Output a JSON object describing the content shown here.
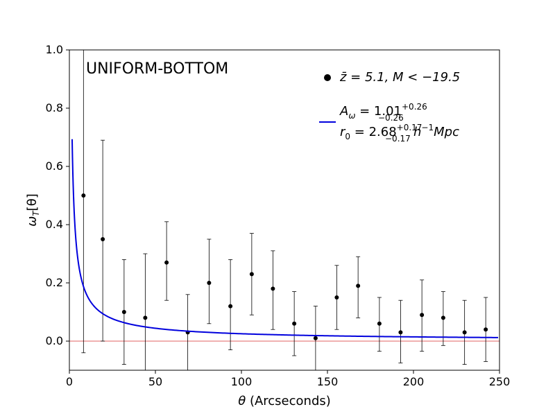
{
  "chart_data": {
    "type": "scatter",
    "title": "UNIFORM-BOTTOM",
    "xlabel_symbol": "θ",
    "xlabel_text": " (Arcseconds)",
    "ylabel_main": "ω",
    "ylabel_sub": "T",
    "ylabel_tail": "[θ]",
    "xlim": [
      0,
      250
    ],
    "ylim": [
      -0.1,
      1.0
    ],
    "xticks": [
      0,
      50,
      100,
      150,
      200,
      250
    ],
    "yticks": [
      0.0,
      0.2,
      0.4,
      0.6,
      0.8,
      1.0
    ],
    "xtick_labels": [
      "0",
      "50",
      "100",
      "150",
      "200",
      "250"
    ],
    "ytick_labels": [
      "0.0",
      "0.2",
      "0.4",
      "0.6",
      "0.8",
      "1.0"
    ],
    "grid": false,
    "legend_position": "top-right",
    "reference_line": {
      "y": 0.0,
      "color": "#e06060"
    },
    "points": {
      "color": "#000000",
      "x": [
        8.2,
        19.4,
        31.8,
        44.1,
        56.5,
        68.8,
        81.2,
        93.6,
        106.0,
        118.3,
        130.7,
        143.1,
        155.4,
        167.8,
        180.2,
        192.5,
        204.9,
        217.3,
        229.7,
        242.0
      ],
      "y": [
        0.5,
        0.35,
        0.1,
        0.08,
        0.27,
        0.03,
        0.2,
        0.12,
        0.23,
        0.18,
        0.06,
        0.01,
        0.15,
        0.19,
        0.06,
        0.03,
        0.09,
        0.08,
        0.03,
        0.04
      ],
      "yerr_low": [
        -0.04,
        0.0,
        -0.08,
        -0.1,
        0.14,
        -0.1,
        0.06,
        -0.03,
        0.09,
        0.04,
        -0.05,
        -0.1,
        0.04,
        0.08,
        -0.035,
        -0.075,
        -0.035,
        -0.015,
        -0.08,
        -0.07
      ],
      "yerr_high": [
        1.0,
        0.69,
        0.28,
        0.3,
        0.41,
        0.16,
        0.35,
        0.28,
        0.37,
        0.31,
        0.17,
        0.12,
        0.26,
        0.29,
        0.15,
        0.14,
        0.21,
        0.17,
        0.14,
        0.15
      ]
    },
    "fit": {
      "color": "#0000dd",
      "function": "A * x^-0.8",
      "amplitude": 1.01,
      "exponent": -0.8,
      "x_start": 1.6,
      "x_end": 250
    },
    "legend": {
      "points_label": {
        "main": "z̄ = 5.1,  M < −19.5"
      },
      "fit_label": {
        "line1_main": "A",
        "line1_sub": "ω",
        "line1_rest": " = 1.01",
        "line1_sup": "+0.26",
        "line1_subval": "−0.26",
        "line2_main": "r",
        "line2_sub": "0",
        "line2_rest": " = 2.68",
        "line2_sup": "+0.17",
        "line2_subval": "−0.17",
        "line2_tail": "h",
        "line2_tail_sup": "−1",
        "line2_tail2": "Mpc"
      }
    }
  }
}
